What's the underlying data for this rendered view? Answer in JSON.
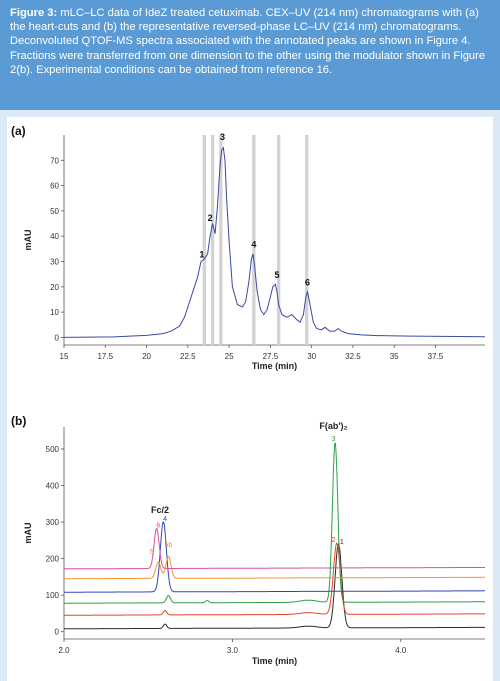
{
  "caption": {
    "label": "Figure 3:",
    "text": " mLC–LC data of IdeZ treated cetuximab. CEX–UV (214 nm) chromatograms with (a) the heart-cuts and (b) the representative reversed-phase LC–UV (214 nm) chromatograms. Deconvoluted QTOF-MS spectra associated with the annotated peaks are shown in Figure 4. Fractions were transferred from one dimension to the other using the modulator shown in Figure 2(b). Experimental conditions can be obtained from reference 16."
  },
  "chart_data": [
    {
      "type": "line",
      "panel_label": "(a)",
      "xlabel": "Time (min)",
      "ylabel": "mAU",
      "xlim": [
        15,
        40.5
      ],
      "ylim": [
        -3,
        80
      ],
      "x_ticks": [
        "15",
        "17.5",
        "20",
        "22.5",
        "25",
        "27.5",
        "30",
        "32.5",
        "35",
        "37.5"
      ],
      "x_tick_values": [
        15,
        17.5,
        20,
        22.5,
        25,
        27.5,
        30,
        32.5,
        35,
        37.5
      ],
      "y_ticks": [
        "0",
        "10",
        "20",
        "30",
        "40",
        "50",
        "60",
        "70"
      ],
      "y_tick_values": [
        0,
        10,
        20,
        30,
        40,
        50,
        60,
        70
      ],
      "line_color": "#3b4aa0",
      "heartcut_color": "#d3d3d3",
      "heartcuts": [
        [
          23.4,
          23.6
        ],
        [
          23.9,
          24.1
        ],
        [
          24.4,
          24.6
        ],
        [
          26.4,
          26.6
        ],
        [
          27.9,
          28.1
        ],
        [
          29.6,
          29.8
        ]
      ],
      "series": [
        {
          "x": [
            15,
            18,
            20,
            21,
            21.5,
            22,
            22.3,
            22.6,
            22.9,
            23.1,
            23.3,
            23.5,
            23.7,
            23.85,
            24.0,
            24.15,
            24.3,
            24.45,
            24.55,
            24.65,
            24.75,
            24.85,
            25.0,
            25.2,
            25.5,
            25.8,
            26.0,
            26.2,
            26.35,
            26.45,
            26.55,
            26.7,
            26.9,
            27.1,
            27.3,
            27.5,
            27.65,
            27.8,
            27.9,
            28.0,
            28.2,
            28.5,
            28.8,
            29.1,
            29.3,
            29.5,
            29.65,
            29.75,
            29.9,
            30.1,
            30.3,
            30.6,
            30.8,
            31.1,
            31.4,
            31.6,
            31.8,
            32.2,
            33,
            34,
            36,
            38,
            40.5
          ],
          "y": [
            0,
            0.2,
            0.8,
            1.5,
            2.5,
            4.5,
            8,
            14,
            20,
            24,
            30,
            31,
            33,
            40,
            45,
            41,
            52,
            68,
            74,
            75,
            70,
            55,
            38,
            20,
            13,
            12,
            14,
            22,
            31,
            33,
            28,
            18,
            11,
            9,
            11,
            16,
            20,
            21,
            18,
            13,
            9,
            8,
            9,
            7,
            6,
            9,
            16,
            18,
            13,
            6,
            3.5,
            3,
            4,
            2.5,
            2.5,
            3.5,
            2.5,
            1.5,
            1,
            0.7,
            0.5,
            0.4,
            0.3
          ]
        }
      ],
      "annotations": [
        {
          "text": "1",
          "x": 23.35,
          "y": 31.5
        },
        {
          "text": "2",
          "x": 23.85,
          "y": 46
        },
        {
          "text": "3",
          "x": 24.6,
          "y": 78
        },
        {
          "text": "4",
          "x": 26.5,
          "y": 35.5
        },
        {
          "text": "5",
          "x": 27.9,
          "y": 23.5
        },
        {
          "text": "6",
          "x": 29.75,
          "y": 20.5
        }
      ]
    },
    {
      "type": "line",
      "panel_label": "(b)",
      "xlabel": "Time (min)",
      "ylabel": "mAU",
      "xlim": [
        2.0,
        4.5
      ],
      "ylim": [
        -20,
        560
      ],
      "x_ticks": [
        "2.0",
        "3.0",
        "4.0"
      ],
      "x_tick_values": [
        2.0,
        3.0,
        4.0
      ],
      "y_ticks": [
        "0",
        "100",
        "200",
        "300",
        "400",
        "500"
      ],
      "y_tick_values": [
        0,
        100,
        200,
        300,
        400,
        500
      ],
      "series": [
        {
          "color": "#2b2b2b",
          "baseline": 8,
          "peaks": [
            [
              2.6,
              12,
              0.01
            ],
            [
              3.45,
              5,
              0.05
            ],
            [
              3.63,
              230,
              0.02
            ]
          ]
        },
        {
          "color": "#e0452b",
          "baseline": 45,
          "peaks": [
            [
              2.6,
              12,
              0.01
            ],
            [
              3.45,
              5,
              0.05
            ],
            [
              3.62,
              195,
              0.02
            ]
          ]
        },
        {
          "color": "#2f9e44",
          "baseline": 78,
          "peaks": [
            [
              2.62,
              20,
              0.012
            ],
            [
              2.85,
              6,
              0.01
            ],
            [
              3.45,
              6,
              0.05
            ],
            [
              3.61,
              438,
              0.016
            ]
          ]
        },
        {
          "color": "#3545b8",
          "baseline": 108,
          "peaks": [
            [
              2.59,
              192,
              0.018
            ]
          ]
        },
        {
          "color": "#f2952f",
          "baseline": 145,
          "peaks": [
            [
              2.56,
              45,
              0.015
            ],
            [
              2.62,
              60,
              0.015
            ]
          ]
        },
        {
          "color": "#d9509b",
          "baseline": 172,
          "peaks": [
            [
              2.55,
              110,
              0.015
            ]
          ]
        }
      ],
      "annotations": [
        {
          "text": "Fc/2",
          "x": 2.57,
          "y": 325,
          "color": "#222222",
          "bold": true
        },
        {
          "text": "F(ab′)₂",
          "x": 3.6,
          "y": 555,
          "color": "#222222",
          "bold": true
        },
        {
          "text": "1",
          "x": 3.65,
          "y": 240,
          "color": "#2b2b2b"
        },
        {
          "text": "2",
          "x": 3.6,
          "y": 245,
          "color": "#e0452b"
        },
        {
          "text": "3",
          "x": 3.6,
          "y": 522,
          "color": "#2f9e44"
        },
        {
          "text": "4",
          "x": 2.6,
          "y": 303,
          "color": "#3545b8"
        },
        {
          "text": "5",
          "x": 2.52,
          "y": 212,
          "color": "#f2952f"
        },
        {
          "text": "5b",
          "x": 2.62,
          "y": 232,
          "color": "#f2952f"
        },
        {
          "text": "6",
          "x": 2.56,
          "y": 285,
          "color": "#d9509b"
        }
      ]
    }
  ]
}
